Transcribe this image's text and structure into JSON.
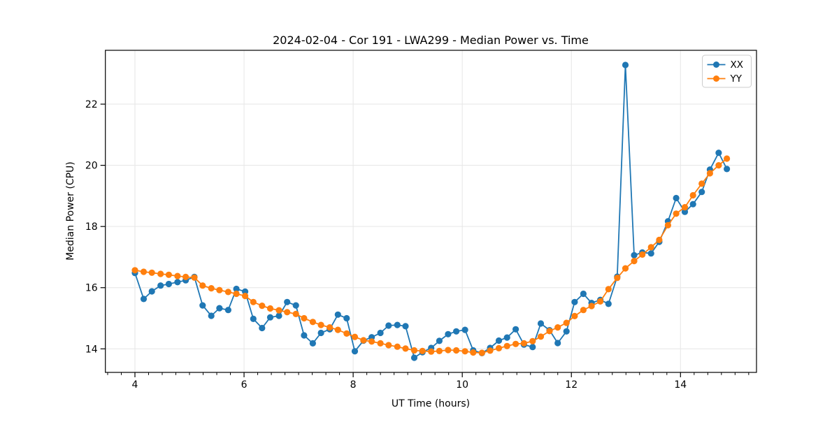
{
  "chart_data": {
    "type": "line",
    "title": "2024-02-04 - Cor 191 - LWA299 - Median Power vs. Time",
    "xlabel": "UT Time (hours)",
    "ylabel": "Median Power (CPU)",
    "xlim": [
      3.458,
      15.393
    ],
    "ylim": [
      13.23,
      23.76
    ],
    "x_major_ticks": [
      4,
      6,
      8,
      10,
      12,
      14
    ],
    "x_major_tick_labels": [
      "4",
      "6",
      "8",
      "10",
      "12",
      "14"
    ],
    "x_minor_tick_step": 0.25,
    "x_minor_tick_range": [
      3.5,
      15.25
    ],
    "y_major_ticks": [
      14,
      16,
      18,
      20,
      22
    ],
    "y_major_tick_labels": [
      "14",
      "16",
      "18",
      "20",
      "22"
    ],
    "grid": true,
    "grid_color": "#e6e6e6",
    "legend_position": "top-right",
    "x": [
      4.0,
      4.16,
      4.31,
      4.47,
      4.62,
      4.78,
      4.93,
      5.09,
      5.24,
      5.4,
      5.55,
      5.71,
      5.86,
      6.02,
      6.17,
      6.33,
      6.48,
      6.64,
      6.79,
      6.95,
      7.1,
      7.26,
      7.41,
      7.57,
      7.72,
      7.88,
      8.03,
      8.19,
      8.34,
      8.5,
      8.65,
      8.81,
      8.96,
      9.12,
      9.27,
      9.43,
      9.58,
      9.74,
      9.89,
      10.05,
      10.2,
      10.36,
      10.51,
      10.67,
      10.82,
      10.98,
      11.13,
      11.29,
      11.44,
      11.6,
      11.75,
      11.91,
      12.06,
      12.22,
      12.37,
      12.53,
      12.68,
      12.84,
      12.99,
      13.15,
      13.3,
      13.46,
      13.61,
      13.77,
      13.92,
      14.08,
      14.23,
      14.39,
      14.54,
      14.7,
      14.85
    ],
    "series": [
      {
        "name": "XX",
        "color": "#1f77b4",
        "values": [
          16.48,
          15.63,
          15.88,
          16.07,
          16.12,
          16.18,
          16.24,
          16.35,
          15.42,
          15.08,
          15.33,
          15.27,
          15.96,
          15.87,
          14.98,
          14.68,
          15.03,
          15.08,
          15.53,
          15.42,
          14.44,
          14.18,
          14.52,
          14.64,
          15.12,
          15.0,
          13.92,
          14.27,
          14.38,
          14.52,
          14.76,
          14.78,
          14.74,
          13.71,
          13.89,
          14.03,
          14.26,
          14.48,
          14.57,
          14.62,
          13.95,
          13.86,
          14.03,
          14.27,
          14.37,
          14.64,
          14.14,
          14.06,
          14.83,
          14.61,
          14.19,
          14.57,
          15.53,
          15.8,
          15.5,
          15.6,
          15.47,
          16.36,
          23.28,
          17.06,
          17.15,
          17.12,
          17.5,
          18.17,
          18.93,
          18.48,
          18.73,
          19.13,
          19.86,
          20.41,
          19.88
        ]
      },
      {
        "name": "YY",
        "color": "#ff7f0e",
        "values": [
          16.57,
          16.52,
          16.49,
          16.45,
          16.42,
          16.38,
          16.35,
          16.33,
          16.07,
          15.98,
          15.92,
          15.86,
          15.8,
          15.73,
          15.53,
          15.41,
          15.32,
          15.26,
          15.2,
          15.14,
          15.0,
          14.88,
          14.78,
          14.7,
          14.62,
          14.5,
          14.39,
          14.28,
          14.24,
          14.18,
          14.12,
          14.07,
          14.01,
          13.95,
          13.93,
          13.91,
          13.93,
          13.96,
          13.95,
          13.92,
          13.88,
          13.87,
          13.94,
          14.02,
          14.09,
          14.16,
          14.18,
          14.25,
          14.4,
          14.58,
          14.7,
          14.85,
          15.07,
          15.27,
          15.4,
          15.55,
          15.95,
          16.32,
          16.63,
          16.87,
          17.08,
          17.32,
          17.56,
          18.04,
          18.42,
          18.63,
          19.02,
          19.4,
          19.74,
          20.0,
          20.22
        ]
      }
    ]
  }
}
